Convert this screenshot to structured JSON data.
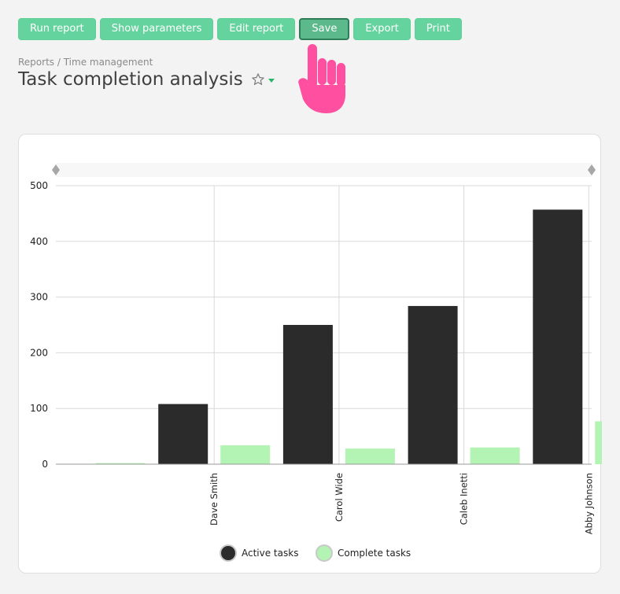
{
  "toolbar": {
    "buttons": [
      "Run report",
      "Show parameters",
      "Edit report",
      "Save",
      "Export",
      "Print"
    ],
    "active_button": "Save"
  },
  "breadcrumb": "Reports / Time management",
  "page_title": "Task completion analysis",
  "icons": {
    "favorite": "star-icon",
    "title_menu": "caret-down-icon",
    "pointer": "hand-pointer-icon"
  },
  "colors": {
    "button": "#64d39d",
    "active_tasks": "#2b2b2b",
    "complete_tasks": "#b3f3b3",
    "pointer": "#ff4fa0"
  },
  "chart_data": {
    "type": "bar",
    "categories": [
      "",
      "Dave Smith",
      "Carol Wide",
      "Caleb Inetti",
      "Abby Johnson"
    ],
    "series": [
      {
        "name": "Active tasks",
        "values": [
          0,
          108,
          250,
          284,
          457
        ]
      },
      {
        "name": "Complete tasks",
        "values": [
          2,
          34,
          28,
          30,
          77
        ]
      }
    ],
    "yticks": [
      "0",
      "100",
      "200",
      "300",
      "400",
      "500"
    ],
    "ylim": [
      0,
      500
    ],
    "grid": true,
    "legend": "bottom-center"
  }
}
